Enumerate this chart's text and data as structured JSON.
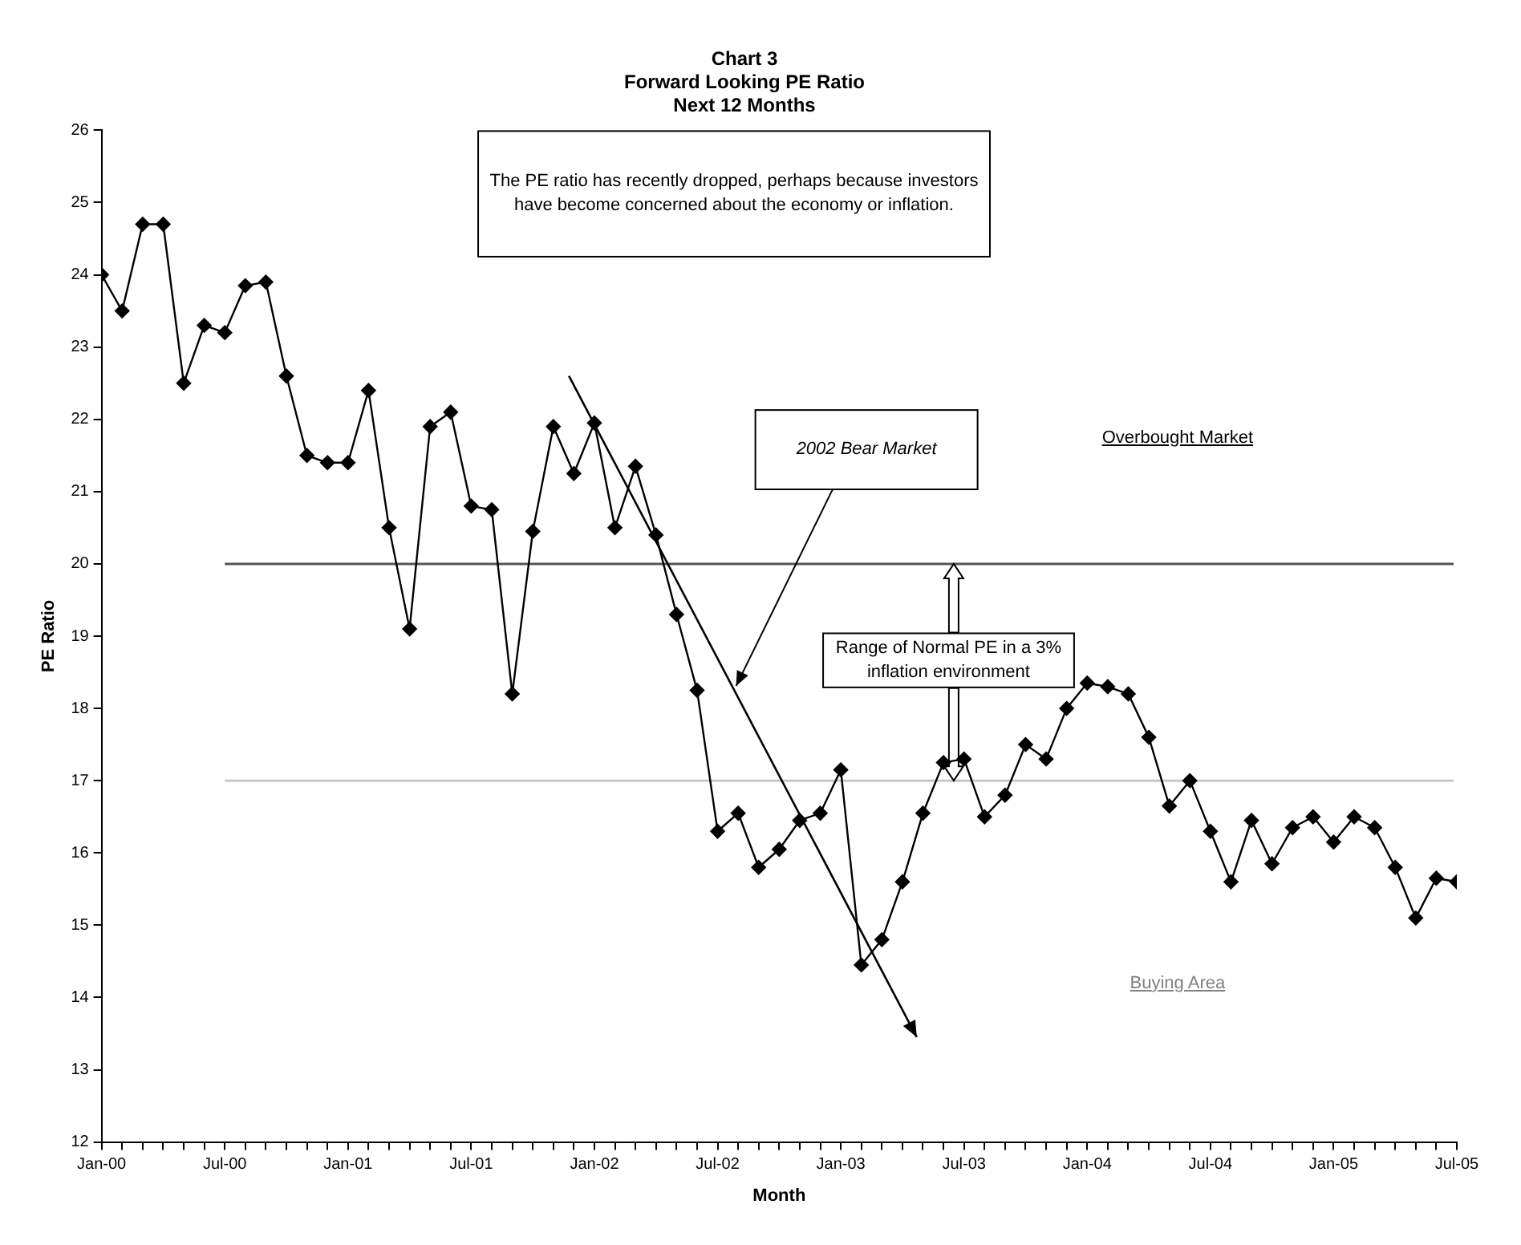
{
  "chart_data": {
    "type": "line",
    "title": "Chart 3\nForward Looking PE Ratio\nNext 12 Months",
    "xlabel": "Month",
    "ylabel": "PE Ratio",
    "x": [
      "2000-01",
      "2000-02",
      "2000-03",
      "2000-04",
      "2000-05",
      "2000-06",
      "2000-07",
      "2000-08",
      "2000-09",
      "2000-10",
      "2000-11",
      "2000-12",
      "2001-01",
      "2001-02",
      "2001-03",
      "2001-04",
      "2001-05",
      "2001-06",
      "2001-07",
      "2001-08",
      "2001-09",
      "2001-10",
      "2001-11",
      "2001-12",
      "2002-01",
      "2002-02",
      "2002-03",
      "2002-04",
      "2002-05",
      "2002-06",
      "2002-07",
      "2002-08",
      "2002-09",
      "2002-10",
      "2002-11",
      "2002-12",
      "2003-01",
      "2003-02",
      "2003-03",
      "2003-04",
      "2003-05",
      "2003-06",
      "2003-07",
      "2003-08",
      "2003-09",
      "2003-10",
      "2003-11",
      "2003-12",
      "2004-01",
      "2004-02",
      "2004-03",
      "2004-04",
      "2004-05",
      "2004-06",
      "2004-07",
      "2004-08",
      "2004-09",
      "2004-10",
      "2004-11",
      "2004-12",
      "2005-01",
      "2005-02",
      "2005-03",
      "2005-04",
      "2005-05",
      "2005-06",
      "2005-07"
    ],
    "series": [
      {
        "type": "line",
        "color": "#000000",
        "marker": "diamond",
        "values": [
          24.0,
          23.5,
          24.7,
          24.7,
          22.5,
          23.3,
          23.2,
          23.85,
          23.9,
          22.6,
          21.5,
          21.4,
          21.4,
          22.4,
          20.5,
          19.1,
          21.9,
          22.1,
          20.8,
          20.75,
          18.2,
          20.45,
          21.9,
          21.25,
          21.95,
          20.5,
          21.35,
          20.4,
          19.3,
          18.25,
          16.3,
          16.55,
          15.8,
          16.05,
          16.45,
          16.55,
          17.15,
          14.45,
          14.8,
          15.6,
          16.55,
          17.25,
          17.3,
          16.5,
          16.8,
          17.5,
          17.3,
          18.0,
          18.35,
          18.3,
          18.2,
          17.6,
          16.65,
          17.0,
          16.3,
          15.6,
          16.45,
          15.85,
          16.35,
          16.5,
          16.15,
          16.5,
          16.35,
          15.8,
          15.1,
          15.65,
          15.6
        ]
      }
    ],
    "xlim": [
      "2000-01",
      "2005-07"
    ],
    "xticks": [
      {
        "value": "2000-01",
        "label": "Jan-00"
      },
      {
        "value": "2000-07",
        "label": "Jul-00"
      },
      {
        "value": "2001-01",
        "label": "Jan-01"
      },
      {
        "value": "2001-07",
        "label": "Jul-01"
      },
      {
        "value": "2002-01",
        "label": "Jan-02"
      },
      {
        "value": "2002-07",
        "label": "Jul-02"
      },
      {
        "value": "2003-01",
        "label": "Jan-03"
      },
      {
        "value": "2003-07",
        "label": "Jul-03"
      },
      {
        "value": "2004-01",
        "label": "Jan-04"
      },
      {
        "value": "2004-07",
        "label": "Jul-04"
      },
      {
        "value": "2005-01",
        "label": "Jan-05"
      },
      {
        "value": "2005-07",
        "label": "Jul-05"
      }
    ],
    "ylim": [
      12,
      26
    ],
    "yticks": [
      12,
      13,
      14,
      15,
      16,
      17,
      18,
      19,
      20,
      21,
      22,
      23,
      24,
      25,
      26
    ],
    "ref_lines": [
      {
        "axis": "y",
        "value": 20,
        "color": "#555555"
      },
      {
        "axis": "y",
        "value": 17,
        "color": "#c8c8c8"
      }
    ],
    "annotations": [
      "The PE ratio has recently dropped, perhaps because investors have become concerned about the economy or inflation.",
      "2002 Bear Market",
      "Range of Normal PE in a 3% inflation environment",
      "Overbought Market",
      "Buying Area"
    ],
    "grid": false,
    "legend": false
  }
}
